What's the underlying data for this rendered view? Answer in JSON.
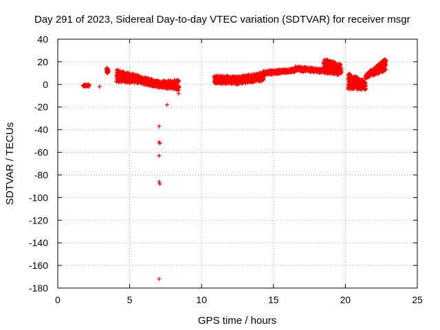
{
  "chart_data": {
    "type": "scatter",
    "title": "Day 291 of 2023, Sidereal Day-to-day VTEC variation (SDTVAR) for receiver msgr",
    "xlabel": "GPS time / hours",
    "ylabel": "SDTVAR / TECUs",
    "xlim": [
      0,
      25
    ],
    "ylim": [
      -180,
      40
    ],
    "xticks": [
      0,
      5,
      10,
      15,
      20,
      25
    ],
    "yticks": [
      40,
      20,
      0,
      -20,
      -40,
      -60,
      -80,
      -100,
      -120,
      -140,
      -160,
      -180
    ],
    "xtick_labels": [
      "0",
      "5",
      "10",
      "15",
      "20",
      "25"
    ],
    "ytick_labels": [
      "40",
      "20",
      "0",
      "-20",
      "-40",
      "-60",
      "-80",
      "-100",
      "-120",
      "-140",
      "-160",
      "-180"
    ],
    "grid": true,
    "marker": "+",
    "color": "#ff0000",
    "outliers": [
      {
        "x": 7.05,
        "y": -37
      },
      {
        "x": 7.05,
        "y": -51
      },
      {
        "x": 7.1,
        "y": -52
      },
      {
        "x": 7.05,
        "y": -63
      },
      {
        "x": 7.05,
        "y": -86
      },
      {
        "x": 7.1,
        "y": -88
      },
      {
        "x": 7.05,
        "y": -172
      },
      {
        "x": 7.6,
        "y": -18
      },
      {
        "x": 8.4,
        "y": -8
      },
      {
        "x": 2.9,
        "y": -2
      },
      {
        "x": 2.0,
        "y": -1
      }
    ],
    "bands": [
      {
        "x0": 1.8,
        "x1": 2.2,
        "y0": [
          0,
          0
        ],
        "y1": [
          -2,
          -2
        ]
      },
      {
        "x0": 3.4,
        "x1": 3.5,
        "y0": [
          15,
          15
        ],
        "y1": [
          10,
          10
        ]
      },
      {
        "x0": 4.1,
        "x1": 5.6,
        "y0": [
          13,
          8
        ],
        "y1": [
          2,
          1
        ]
      },
      {
        "x0": 5.6,
        "x1": 7.0,
        "y0": [
          8,
          3
        ],
        "y1": [
          1,
          -3
        ]
      },
      {
        "x0": 7.0,
        "x1": 8.4,
        "y0": [
          3,
          4
        ],
        "y1": [
          -3,
          -5
        ]
      },
      {
        "x0": 10.9,
        "x1": 12.5,
        "y0": [
          8,
          7
        ],
        "y1": [
          1,
          0
        ]
      },
      {
        "x0": 12.5,
        "x1": 14.3,
        "y0": [
          7,
          11
        ],
        "y1": [
          0,
          3
        ]
      },
      {
        "x0": 14.3,
        "x1": 16.5,
        "y0": [
          12,
          14
        ],
        "y1": [
          8,
          11
        ]
      },
      {
        "x0": 16.5,
        "x1": 18.5,
        "y0": [
          16,
          14
        ],
        "y1": [
          12,
          10
        ]
      },
      {
        "x0": 18.5,
        "x1": 19.7,
        "y0": [
          23,
          18
        ],
        "y1": [
          10,
          8
        ]
      },
      {
        "x0": 20.2,
        "x1": 21.4,
        "y0": [
          10,
          3
        ],
        "y1": [
          -4,
          -5
        ]
      },
      {
        "x0": 21.4,
        "x1": 22.8,
        "y0": [
          9,
          23
        ],
        "y1": [
          5,
          12
        ]
      }
    ]
  }
}
